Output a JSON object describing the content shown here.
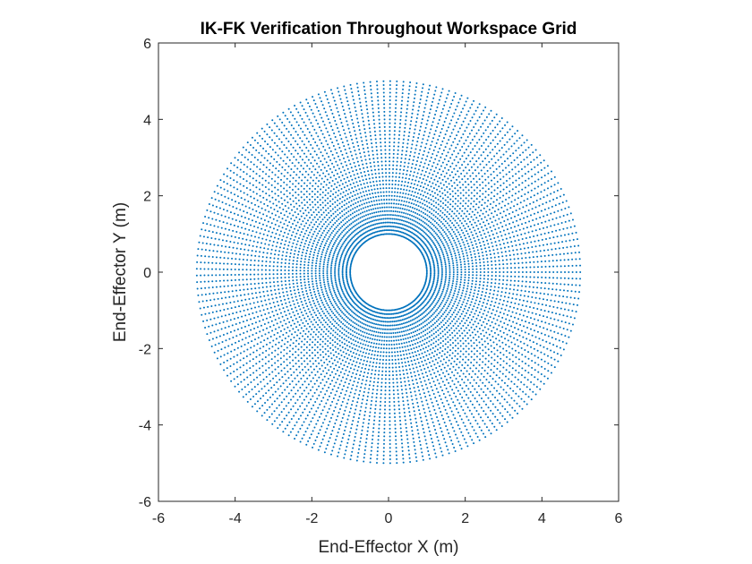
{
  "chart_data": {
    "type": "scatter",
    "title": "IK-FK Verification Throughout Workspace Grid",
    "xlabel": "End-Effector X (m)",
    "ylabel": "End-Effector Y (m)",
    "xlim": [
      -6,
      6
    ],
    "ylim": [
      -6,
      6
    ],
    "xticks": [
      -6,
      -4,
      -2,
      0,
      2,
      4,
      6
    ],
    "yticks": [
      -6,
      -4,
      -2,
      0,
      2,
      4,
      6
    ],
    "xtick_labels": [
      "-6",
      "-4",
      "-2",
      "0",
      "2",
      "4",
      "6"
    ],
    "ytick_labels": [
      "-6",
      "-4",
      "-2",
      "0",
      "2",
      "4",
      "6"
    ],
    "grid": false,
    "legend": "none",
    "series": [
      {
        "color": "#0072BD",
        "marker": "dot",
        "pattern": "polar grid",
        "r_min": 1,
        "r_max": 5,
        "rings": 41,
        "points_per_ring": 181
      }
    ]
  }
}
